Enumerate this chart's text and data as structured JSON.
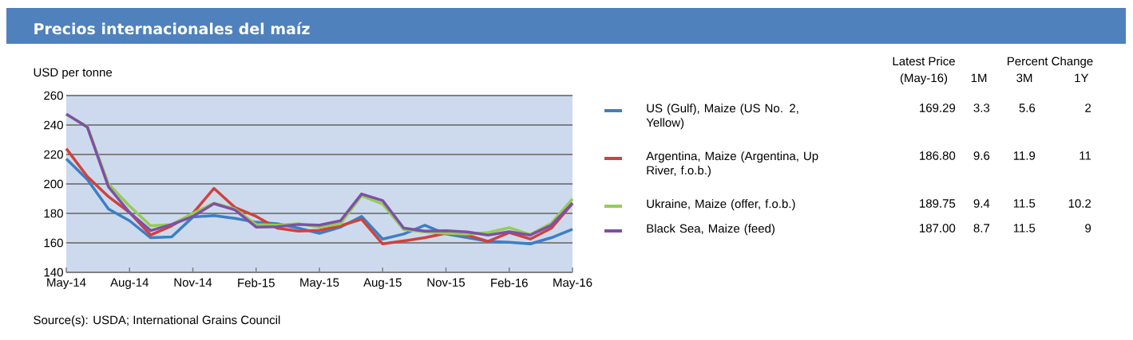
{
  "chart_data": {
    "type": "line",
    "title": "Precios internacionales del maíz",
    "ylabel": "USD per tonne",
    "categories": [
      "May-14",
      null,
      null,
      "Aug-14",
      null,
      null,
      "Nov-14",
      null,
      null,
      "Feb-15",
      null,
      null,
      "May-15",
      null,
      null,
      "Aug-15",
      null,
      null,
      "Nov-15",
      null,
      null,
      "Feb-16",
      null,
      null,
      "May-16"
    ],
    "series": [
      {
        "name": "US (Gulf), Maize (US No. 2, Yellow)",
        "color": "#3d7fc4",
        "values": [
          217,
          203,
          183,
          175,
          163.5,
          164,
          177.5,
          178.5,
          176.6,
          174,
          173,
          170,
          166.5,
          170.7,
          178,
          162.6,
          166,
          172,
          166,
          163.5,
          161,
          160.4,
          159.3,
          163.5,
          169.3
        ]
      },
      {
        "name": "Argentina, Maize (Argentina, Up River, f.o.b.)",
        "color": "#d0423a",
        "values": [
          224,
          205,
          191.4,
          180.6,
          165.3,
          171.6,
          180,
          197,
          184,
          178,
          170,
          168,
          168.5,
          171.6,
          176,
          159.3,
          161.3,
          163.5,
          166.5,
          165.3,
          161,
          167,
          162.6,
          170,
          186.8
        ]
      },
      {
        "name": "Ukraine, Maize (offer, f.o.b.)",
        "color": "#92cf50",
        "values": [
          247,
          239,
          200,
          185,
          171.6,
          172.5,
          180,
          187,
          183,
          172.5,
          172,
          173,
          170.7,
          173,
          192,
          186.4,
          169,
          167.4,
          166.5,
          166,
          167,
          170.3,
          165.6,
          173.4,
          189.8
        ]
      },
      {
        "name": "Black Sea, Maize (feed)",
        "color": "#7f4fa8",
        "values": [
          247.5,
          238.5,
          198,
          180.6,
          168.3,
          172.5,
          177.9,
          186.6,
          182.4,
          170.7,
          171,
          172.5,
          172,
          175,
          193.2,
          188.7,
          170,
          168,
          168.3,
          167.4,
          165.3,
          167.6,
          165.3,
          172,
          187
        ]
      }
    ],
    "ylim": [
      140,
      260
    ],
    "yticks": [
      140,
      160,
      180,
      200,
      220,
      240,
      260
    ],
    "grid": "y",
    "legend": "right",
    "annotations": [
      "Source(s): USDA; International Grains Council",
      "Latest Price",
      "(May-16)",
      "Percent Change",
      "1M",
      "3M",
      "1Y",
      "169.29",
      "3.3",
      "5.6",
      "2",
      "186.80",
      "9.6",
      "11.9",
      "11",
      "189.75",
      "9.4",
      "11.5",
      "10.2",
      "187.00",
      "8.7",
      "11.5",
      "9"
    ]
  }
}
